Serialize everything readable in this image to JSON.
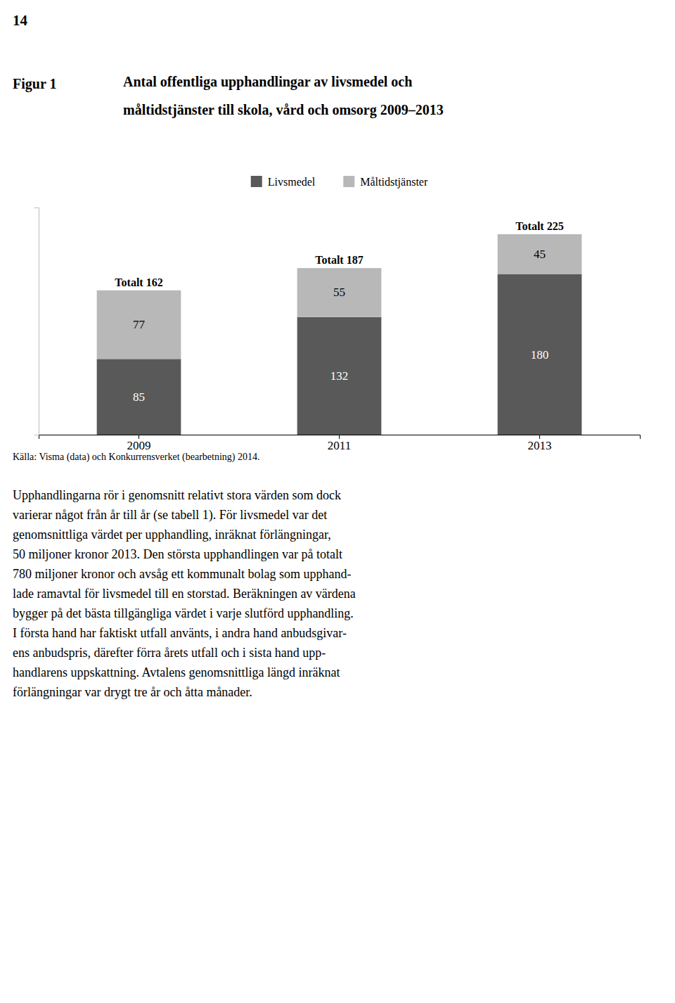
{
  "page_number": "14",
  "figure_label": "Figur 1",
  "source": "Källa: Visma (data) och Konkurrensverket (bearbetning) 2014.",
  "body_lines": [
    "Upphandlingarna rör i genomsnitt relativt stora värden som dock",
    "varierar något från år till år (se tabell 1). För livsmedel var det",
    "genomsnittliga värdet per upphandling, inräknat förlängningar,",
    "50 miljoner kronor 2013. Den största upphandlingen var på totalt",
    "780 miljoner kronor och avsåg ett kommunalt bolag som upphand-",
    "lade ramavtal för livsmedel till en storstad. Beräkningen av värdena",
    "bygger på det bästa tillgängliga värdet i varje slutförd upphandling.",
    "I första hand har faktiskt utfall använts, i andra hand anbudsgivar-",
    "ens anbudspris, därefter förra årets utfall och i sista hand upp-",
    "handlarens uppskattning. Avtalens genomsnittliga längd inräknat",
    "förlängningar var drygt tre år och åtta månader."
  ],
  "chart_data": {
    "type": "bar",
    "title": [
      "Antal offentliga upphandlingar av livsmedel och",
      "måltidstjänster till skola, vård och omsorg 2009–2013"
    ],
    "categories": [
      "2009",
      "2011",
      "2013"
    ],
    "series": [
      {
        "name": "Livsmedel",
        "color": "#595959",
        "values": [
          85,
          132,
          180
        ]
      },
      {
        "name": "Måltidstjänster",
        "color": "#b8b8b8",
        "values": [
          77,
          55,
          45
        ]
      }
    ],
    "totals": {
      "values": [
        162,
        187,
        225
      ],
      "value_labels": [
        "Totalt 162",
        "Totalt 187",
        "Totalt 225"
      ]
    },
    "stacked": true,
    "data_labels": true,
    "legend": "top",
    "grid": false,
    "tick_labels": "x",
    "ylim": [
      0,
      255
    ],
    "yticks": []
  }
}
